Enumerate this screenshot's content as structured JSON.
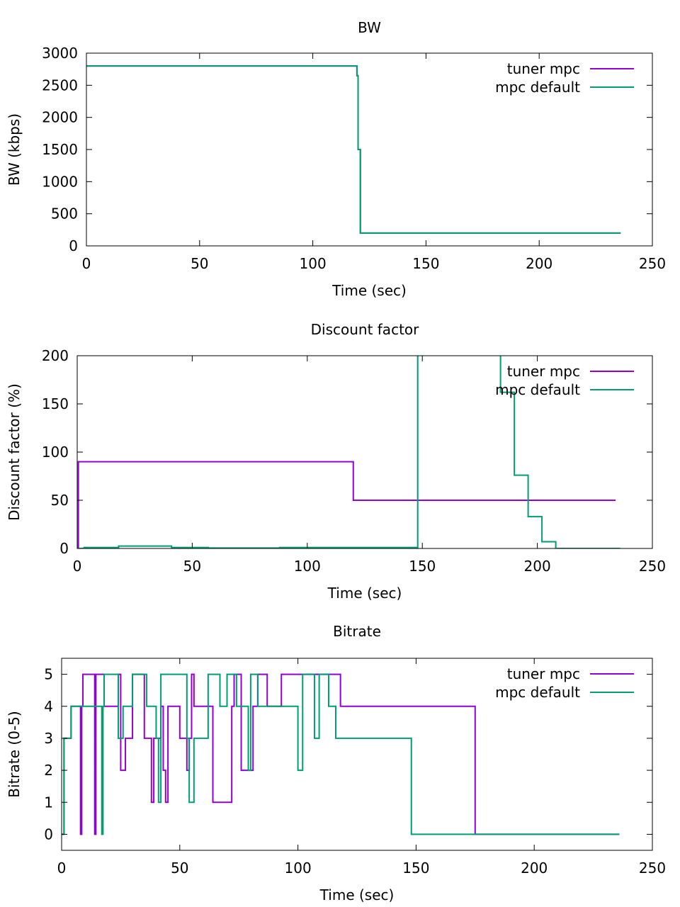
{
  "chart_data": [
    {
      "type": "line",
      "title": "BW",
      "xlabel": "Time (sec)",
      "ylabel": "BW (kbps)",
      "xlim": [
        0,
        250
      ],
      "ylim": [
        0,
        3000
      ],
      "xticks": [
        0,
        50,
        100,
        150,
        200,
        250
      ],
      "yticks": [
        0,
        500,
        1000,
        1500,
        2000,
        2500,
        3000
      ],
      "grid": false,
      "legend": "top-right",
      "series": [
        {
          "name": "tuner mpc",
          "color": "#9400d3",
          "x": [
            0,
            119.5,
            119.5,
            120,
            120,
            120.5,
            120.5,
            121,
            121,
            236
          ],
          "y": [
            2800,
            2800,
            2650,
            2650,
            1500,
            1500,
            1500,
            1500,
            200,
            200
          ]
        },
        {
          "name": "mpc default",
          "color": "#009e73",
          "x": [
            0,
            119.5,
            119.5,
            120,
            120,
            120.5,
            120.5,
            121,
            121,
            236
          ],
          "y": [
            2800,
            2800,
            2650,
            2650,
            1500,
            1500,
            1500,
            1500,
            200,
            200
          ]
        }
      ]
    },
    {
      "type": "line",
      "title": "Discount factor",
      "xlabel": "Time (sec)",
      "ylabel": "Discount factor (%)",
      "xlim": [
        0,
        250
      ],
      "ylim": [
        0,
        200
      ],
      "xticks": [
        0,
        50,
        100,
        150,
        200,
        250
      ],
      "yticks": [
        0,
        50,
        100,
        150,
        200
      ],
      "grid": false,
      "legend": "top-right",
      "series": [
        {
          "name": "tuner mpc",
          "color": "#9400d3",
          "x": [
            0,
            0.5,
            0.5,
            120,
            120,
            234
          ],
          "y": [
            0,
            0,
            90,
            90,
            50,
            50
          ]
        },
        {
          "name": "mpc default",
          "color": "#009e73",
          "x": [
            0,
            3,
            3,
            18,
            18,
            41,
            41,
            57,
            57,
            88,
            88,
            148,
            148,
            150,
            184,
            184,
            190,
            190,
            196,
            196,
            202,
            202,
            208,
            208,
            236
          ],
          "y": [
            0,
            0,
            1,
            1,
            2.5,
            2.5,
            1,
            1,
            0.5,
            0.5,
            1,
            1,
            210,
            210,
            210,
            162,
            162,
            76,
            76,
            33,
            33,
            7,
            7,
            0,
            0
          ]
        }
      ]
    },
    {
      "type": "line",
      "title": "Bitrate",
      "xlabel": "Time (sec)",
      "ylabel": "Bitrate (0-5)",
      "xlim": [
        0,
        250
      ],
      "ylim": [
        -0.5,
        5.5
      ],
      "xticks": [
        0,
        50,
        100,
        150,
        200,
        250
      ],
      "yticks": [
        0,
        1,
        2,
        3,
        4,
        5
      ],
      "grid": false,
      "legend": "top-right",
      "series": [
        {
          "name": "tuner mpc",
          "color": "#9400d3",
          "x": [
            0,
            1,
            1,
            4,
            4,
            8,
            8,
            8.5,
            8.5,
            9,
            9,
            14,
            14,
            14.5,
            14.5,
            18,
            18,
            24,
            24,
            25,
            25,
            27,
            27,
            30,
            30,
            35,
            35,
            38,
            38,
            39,
            39,
            42,
            42,
            43,
            43,
            44,
            44,
            45,
            45,
            50,
            50,
            53,
            53,
            54,
            54,
            55,
            55,
            56,
            56,
            64,
            64,
            72,
            72,
            73,
            73,
            76,
            76,
            81,
            81,
            83,
            83,
            87,
            87,
            93,
            93,
            112,
            112,
            118,
            118,
            120,
            120,
            175,
            175,
            236
          ],
          "y": [
            0,
            0,
            3,
            3,
            4,
            4,
            0,
            0,
            4,
            4,
            5,
            5,
            0,
            0,
            5,
            5,
            4,
            4,
            5,
            5,
            2,
            2,
            3,
            3,
            5,
            5,
            3,
            3,
            1,
            1,
            3,
            3,
            4,
            4,
            2,
            2,
            1,
            1,
            4,
            4,
            3,
            3,
            2,
            2,
            3,
            3,
            5,
            5,
            4,
            4,
            1,
            1,
            4,
            4,
            5,
            5,
            2,
            2,
            4,
            4,
            5,
            5,
            4,
            4,
            5,
            5,
            5,
            5,
            4,
            4,
            4,
            4,
            0,
            0
          ]
        },
        {
          "name": "mpc default",
          "color": "#009e73",
          "x": [
            0,
            1,
            1,
            4,
            4,
            17,
            17,
            17.5,
            17.5,
            18,
            18,
            24,
            24,
            26,
            26,
            30,
            30,
            36,
            36,
            40,
            40,
            41,
            41,
            42,
            42,
            53,
            53,
            54,
            54,
            56,
            56,
            62,
            62,
            67,
            67,
            70,
            70,
            74,
            74,
            79,
            79,
            80,
            80,
            83,
            83,
            100,
            100,
            102,
            102,
            107,
            107,
            109,
            109,
            113,
            113,
            116,
            116,
            148,
            148,
            236
          ],
          "y": [
            0,
            0,
            3,
            3,
            4,
            4,
            0,
            0,
            4,
            4,
            5,
            5,
            3,
            3,
            4,
            4,
            5,
            5,
            4,
            4,
            3,
            3,
            1,
            1,
            5,
            5,
            3,
            3,
            1,
            1,
            3,
            3,
            5,
            5,
            4,
            4,
            5,
            5,
            4,
            4,
            2,
            2,
            5,
            5,
            4,
            4,
            2,
            2,
            5,
            5,
            3,
            3,
            5,
            5,
            4,
            4,
            3,
            3,
            0,
            0
          ]
        }
      ]
    }
  ]
}
